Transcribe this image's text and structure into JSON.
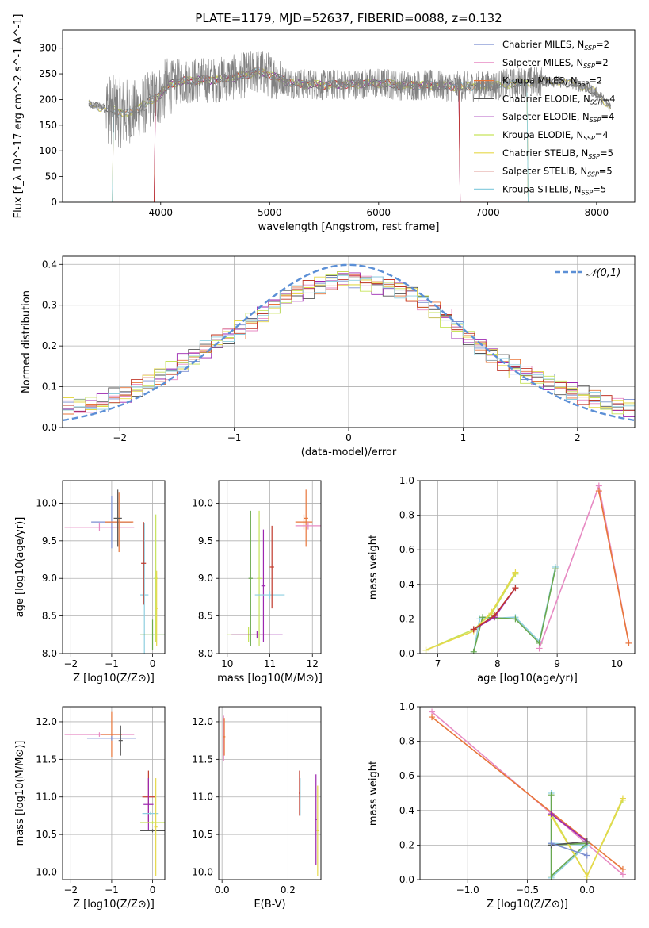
{
  "figure": {
    "title": "PLATE=1179, MJD=52637, FIBERID=0088, z=0.132"
  },
  "chart_data": [
    {
      "id": "spectrum",
      "type": "line",
      "title": "PLATE=1179, MJD=52637, FIBERID=0088, z=0.132",
      "xlabel": "wavelength [Angstrom, rest frame]",
      "ylabel": "Flux [f_λ 10^-17 erg cm^-2 s^-1 A^-1]",
      "xlim": [
        3100,
        8350
      ],
      "ylim": [
        0,
        335
      ],
      "xticks": [
        4000,
        5000,
        6000,
        7000,
        8000
      ],
      "yticks": [
        0,
        50,
        100,
        150,
        200,
        250,
        300
      ],
      "grid": false,
      "legend_loc": "upper right",
      "data_wavelength_range": [
        3340,
        8130
      ],
      "data_approx_continuum": {
        "x": [
          3340,
          3450,
          3550,
          3700,
          3850,
          4000,
          4100,
          4300,
          4500,
          4700,
          4900,
          5000,
          5200,
          5500,
          5800,
          6000,
          6200,
          6500,
          6700,
          6900,
          7100,
          7300,
          7500,
          7700,
          7900,
          8000,
          8130
        ],
        "y": [
          190,
          185,
          180,
          172,
          190,
          210,
          232,
          238,
          238,
          244,
          255,
          248,
          232,
          228,
          230,
          232,
          228,
          228,
          225,
          226,
          228,
          233,
          236,
          234,
          224,
          212,
          185
        ]
      },
      "series": [
        {
          "name": "Chabrier MILES, N_SSP=2",
          "color": "#7b8ed0"
        },
        {
          "name": "Salpeter MILES, N_SSP=2",
          "color": "#e78ac3"
        },
        {
          "name": "Kroupa MILES, N_SSP=2",
          "color": "#e8763a"
        },
        {
          "name": "Chabrier ELODIE, N_SSP=4",
          "color": "#555555"
        },
        {
          "name": "Salpeter ELODIE, N_SSP=4",
          "color": "#9c27b0"
        },
        {
          "name": "Kroupa ELODIE, N_SSP=4",
          "color": "#c6e35a"
        },
        {
          "name": "Chabrier STELIB, N_SSP=5",
          "color": "#e6d84a"
        },
        {
          "name": "Salpeter STELIB, N_SSP=5",
          "color": "#c0392b"
        },
        {
          "name": "Kroupa STELIB, N_SSP=5",
          "color": "#8ecfe0"
        }
      ]
    },
    {
      "id": "residuals",
      "type": "line",
      "xlabel": "(data-model)/error",
      "ylabel": "Normed distribution",
      "xlim": [
        -2.5,
        2.5
      ],
      "ylim": [
        0,
        0.42
      ],
      "xticks": [
        -2,
        -1,
        0,
        1,
        2
      ],
      "yticks": [
        0.0,
        0.1,
        0.2,
        0.3,
        0.4
      ],
      "grid": true,
      "legend_loc": "upper right",
      "gaussian": {
        "name": "𝒩(0,1)",
        "color": "#5b8fd6",
        "mu": 0,
        "sigma": 1
      },
      "bin_centers": [
        -2.45,
        -2.35,
        -2.25,
        -2.15,
        -2.05,
        -1.95,
        -1.85,
        -1.75,
        -1.65,
        -1.55,
        -1.45,
        -1.35,
        -1.25,
        -1.15,
        -1.05,
        -0.95,
        -0.85,
        -0.75,
        -0.65,
        -0.55,
        -0.45,
        -0.35,
        -0.25,
        -0.15,
        -0.05,
        0.05,
        0.15,
        0.25,
        0.35,
        0.45,
        0.55,
        0.65,
        0.75,
        0.85,
        0.95,
        1.05,
        1.15,
        1.25,
        1.35,
        1.45,
        1.55,
        1.65,
        1.75,
        1.85,
        1.95,
        2.05,
        2.15,
        2.25,
        2.35,
        2.45
      ],
      "hist_base": [
        0.05,
        0.05,
        0.055,
        0.06,
        0.075,
        0.08,
        0.095,
        0.11,
        0.125,
        0.14,
        0.16,
        0.175,
        0.19,
        0.21,
        0.225,
        0.24,
        0.26,
        0.28,
        0.3,
        0.32,
        0.33,
        0.34,
        0.35,
        0.36,
        0.37,
        0.365,
        0.355,
        0.35,
        0.345,
        0.34,
        0.33,
        0.31,
        0.29,
        0.27,
        0.24,
        0.22,
        0.2,
        0.18,
        0.16,
        0.145,
        0.13,
        0.12,
        0.11,
        0.1,
        0.09,
        0.08,
        0.07,
        0.06,
        0.05,
        0.045
      ],
      "series_colors": [
        "#7b8ed0",
        "#e78ac3",
        "#e8763a",
        "#555555",
        "#9c27b0",
        "#c6e35a",
        "#e6d84a",
        "#c0392b",
        "#8ecfe0"
      ]
    },
    {
      "id": "age_vs_z",
      "type": "scatter",
      "xlabel": "Z [log10(Z/Z⊙)]",
      "ylabel": "age  [log10(age/yr)]",
      "xlim": [
        -2.2,
        0.3
      ],
      "ylim": [
        8.0,
        10.3
      ],
      "xticks": [
        -2,
        -1,
        0
      ],
      "yticks": [
        8.0,
        8.5,
        9.0,
        9.5,
        10.0
      ],
      "grid": true,
      "points": [
        {
          "x": -1.3,
          "y": 9.68,
          "xerr": 0.85,
          "yerr": 0.05,
          "color": "#e78ac3"
        },
        {
          "x": -1.0,
          "y": 9.75,
          "xerr": 0.5,
          "yerr": 0.35,
          "color": "#7b8ed0"
        },
        {
          "x": -0.82,
          "y": 9.75,
          "xerr": 0.35,
          "yerr": 0.4,
          "color": "#e8763a"
        },
        {
          "x": -0.85,
          "y": 9.8,
          "xerr": 0.1,
          "yerr": 0.38,
          "color": "#555555"
        },
        {
          "x": -0.2,
          "y": 8.78,
          "xerr": 0.1,
          "yerr": 0.95,
          "color": "#8ecfe0"
        },
        {
          "x": -0.22,
          "y": 9.2,
          "xerr": 0.06,
          "yerr": 0.55,
          "color": "#c0392b"
        },
        {
          "x": 0.0,
          "y": 8.25,
          "xerr": 0.3,
          "yerr": 0.2,
          "color": "#6aa84f"
        },
        {
          "x": 0.08,
          "y": 9.0,
          "xerr": 0.05,
          "yerr": 0.85,
          "color": "#c6e35a"
        },
        {
          "x": 0.1,
          "y": 8.6,
          "xerr": 0.04,
          "yerr": 0.5,
          "color": "#e6d84a"
        }
      ]
    },
    {
      "id": "age_vs_mass",
      "type": "scatter",
      "xlabel": "mass [log10(M/M⊙)]",
      "ylabel": "",
      "xlim": [
        9.8,
        12.2
      ],
      "ylim": [
        8.0,
        10.3
      ],
      "xticks": [
        10,
        11,
        12
      ],
      "yticks": [
        8.0,
        8.5,
        9.0,
        9.5,
        10.0
      ],
      "grid": true,
      "points": [
        {
          "x": 10.5,
          "y": 8.25,
          "xerr": 0.5,
          "yerr": 0.1,
          "color": "#c6e35a"
        },
        {
          "x": 10.7,
          "y": 8.25,
          "xerr": 0.6,
          "yerr": 0.05,
          "color": "#9c27b0"
        },
        {
          "x": 10.55,
          "y": 9.0,
          "xerr": 0.05,
          "yerr": 0.9,
          "color": "#6aa84f"
        },
        {
          "x": 10.75,
          "y": 9.0,
          "xerr": 0.05,
          "yerr": 0.9,
          "color": "#c6e35a"
        },
        {
          "x": 10.85,
          "y": 8.9,
          "xerr": 0.05,
          "yerr": 0.75,
          "color": "#9c27b0"
        },
        {
          "x": 11.0,
          "y": 8.78,
          "xerr": 0.35,
          "yerr": 0.05,
          "color": "#8ecfe0"
        },
        {
          "x": 11.05,
          "y": 9.15,
          "xerr": 0.05,
          "yerr": 0.55,
          "color": "#c0392b"
        },
        {
          "x": 11.8,
          "y": 9.75,
          "xerr": 0.2,
          "yerr": 0.1,
          "color": "#e8763a"
        },
        {
          "x": 11.85,
          "y": 9.8,
          "xerr": 0.05,
          "yerr": 0.38,
          "color": "#e8763a"
        },
        {
          "x": 11.9,
          "y": 9.7,
          "xerr": 0.3,
          "yerr": 0.05,
          "color": "#e78ac3"
        }
      ]
    },
    {
      "id": "massweight_vs_age",
      "type": "line",
      "xlabel": "age  [log10(age/yr)]",
      "ylabel": "mass weight",
      "xlim": [
        6.7,
        10.3
      ],
      "ylim": [
        0.0,
        1.0
      ],
      "xticks": [
        7,
        8,
        9,
        10
      ],
      "yticks": [
        0.0,
        0.2,
        0.4,
        0.6,
        0.8,
        1.0
      ],
      "grid": true,
      "series": [
        {
          "color": "#8ecfe0",
          "x": [
            7.6,
            7.7,
            8.3,
            8.7,
            8.97
          ],
          "y": [
            0.01,
            0.2,
            0.21,
            0.07,
            0.5
          ]
        },
        {
          "color": "#6aa84f",
          "x": [
            7.6,
            7.75,
            8.3,
            8.7,
            8.97
          ],
          "y": [
            0.01,
            0.21,
            0.2,
            0.06,
            0.49
          ]
        },
        {
          "color": "#c6e35a",
          "x": [
            6.8,
            7.6,
            7.9,
            8.3
          ],
          "y": [
            0.02,
            0.14,
            0.23,
            0.46
          ]
        },
        {
          "color": "#e6d84a",
          "x": [
            6.8,
            7.6,
            7.9,
            8.3
          ],
          "y": [
            0.02,
            0.13,
            0.24,
            0.47
          ]
        },
        {
          "color": "#9c27b0",
          "x": [
            7.6,
            7.95,
            8.3
          ],
          "y": [
            0.14,
            0.21,
            0.38
          ]
        },
        {
          "color": "#c0392b",
          "x": [
            7.6,
            7.95,
            8.3
          ],
          "y": [
            0.14,
            0.22,
            0.38
          ]
        },
        {
          "color": "#e78ac3",
          "x": [
            8.7,
            9.7,
            10.2
          ],
          "y": [
            0.03,
            0.97,
            0.06
          ]
        },
        {
          "color": "#e8763a",
          "x": [
            9.7,
            10.2
          ],
          "y": [
            0.94,
            0.06
          ]
        }
      ]
    },
    {
      "id": "mass_vs_z",
      "type": "scatter",
      "xlabel": "Z [log10(Z/Z⊙)]",
      "ylabel": "mass [log10(M/M⊙)]",
      "xlim": [
        -2.2,
        0.3
      ],
      "ylim": [
        9.9,
        12.2
      ],
      "xticks": [
        -2,
        -1,
        0
      ],
      "yticks": [
        10.0,
        10.5,
        11.0,
        11.5,
        12.0
      ],
      "grid": true,
      "points": [
        {
          "x": -1.3,
          "y": 11.83,
          "xerr": 0.85,
          "yerr": 0.03,
          "color": "#e78ac3"
        },
        {
          "x": -1.0,
          "y": 11.83,
          "xerr": 0.25,
          "yerr": 0.3,
          "color": "#e8763a"
        },
        {
          "x": -1.0,
          "y": 11.78,
          "xerr": 0.6,
          "yerr": 0.03,
          "color": "#7b8ed0"
        },
        {
          "x": -0.78,
          "y": 11.75,
          "xerr": 0.05,
          "yerr": 0.2,
          "color": "#555555"
        },
        {
          "x": -0.1,
          "y": 11.0,
          "xerr": 0.15,
          "yerr": 0.35,
          "color": "#c0392b"
        },
        {
          "x": -0.1,
          "y": 10.9,
          "xerr": 0.12,
          "yerr": 0.35,
          "color": "#9c27b0"
        },
        {
          "x": -0.05,
          "y": 10.78,
          "xerr": 0.2,
          "yerr": 0.02,
          "color": "#8ecfe0"
        },
        {
          "x": 0.0,
          "y": 10.55,
          "xerr": 0.3,
          "yerr": 0.02,
          "color": "#555555"
        },
        {
          "x": 0.0,
          "y": 10.66,
          "xerr": 0.3,
          "yerr": 0.02,
          "color": "#c6e35a"
        },
        {
          "x": 0.08,
          "y": 10.6,
          "xerr": 0.04,
          "yerr": 0.65,
          "color": "#e6d84a"
        }
      ]
    },
    {
      "id": "mass_vs_ebv",
      "type": "scatter",
      "xlabel": "E(B-V)",
      "ylabel": "",
      "xlim": [
        -0.01,
        0.3
      ],
      "ylim": [
        9.9,
        12.2
      ],
      "xticks": [
        0.0,
        0.2
      ],
      "yticks": [
        10.0,
        10.5,
        11.0,
        11.5,
        12.0
      ],
      "grid": true,
      "points": [
        {
          "x": 0.005,
          "y": 11.78,
          "xerr": 0.003,
          "yerr": 0.3,
          "color": "#e78ac3"
        },
        {
          "x": 0.007,
          "y": 11.8,
          "xerr": 0.003,
          "yerr": 0.25,
          "color": "#e8763a"
        },
        {
          "x": 0.235,
          "y": 11.05,
          "xerr": 0.002,
          "yerr": 0.3,
          "color": "#c0392b"
        },
        {
          "x": 0.237,
          "y": 11.0,
          "xerr": 0.002,
          "yerr": 0.25,
          "color": "#8ecfe0"
        },
        {
          "x": 0.285,
          "y": 10.7,
          "xerr": 0.003,
          "yerr": 0.6,
          "color": "#9c27b0"
        },
        {
          "x": 0.29,
          "y": 10.55,
          "xerr": 0.003,
          "yerr": 0.6,
          "color": "#e6d84a"
        }
      ]
    },
    {
      "id": "massweight_vs_z",
      "type": "line",
      "xlabel": "Z [log10(Z/Z⊙)]",
      "ylabel": "mass weight",
      "xlim": [
        -1.4,
        0.4
      ],
      "ylim": [
        0.0,
        1.0
      ],
      "xticks": [
        -1.0,
        -0.5,
        0.0
      ],
      "yticks": [
        0.0,
        0.2,
        0.4,
        0.6,
        0.8,
        1.0
      ],
      "grid": true,
      "series": [
        {
          "color": "#e78ac3",
          "x": [
            -1.3,
            0.3
          ],
          "y": [
            0.97,
            0.03
          ]
        },
        {
          "color": "#e8763a",
          "x": [
            -1.3,
            0.3
          ],
          "y": [
            0.94,
            0.06
          ]
        },
        {
          "color": "#8ecfe0",
          "x": [
            -0.3,
            -0.3,
            0.0,
            -0.3
          ],
          "y": [
            0.5,
            0.01,
            0.2,
            0.21
          ]
        },
        {
          "color": "#6aa84f",
          "x": [
            -0.3,
            -0.3,
            0.0,
            -0.3
          ],
          "y": [
            0.49,
            0.02,
            0.21,
            0.2
          ]
        },
        {
          "color": "#c6e35a",
          "x": [
            -0.3,
            0.0,
            0.3
          ],
          "y": [
            0.38,
            0.02,
            0.46
          ]
        },
        {
          "color": "#e6d84a",
          "x": [
            -0.3,
            0.0,
            0.3
          ],
          "y": [
            0.37,
            0.02,
            0.47
          ]
        },
        {
          "color": "#9c27b0",
          "x": [
            -0.3,
            0.0
          ],
          "y": [
            0.38,
            0.22
          ]
        },
        {
          "color": "#555555",
          "x": [
            -0.3,
            0.0
          ],
          "y": [
            0.2,
            0.22
          ]
        },
        {
          "color": "#7b8ed0",
          "x": [
            -0.3,
            0.0
          ],
          "y": [
            0.21,
            0.14
          ]
        }
      ]
    }
  ]
}
